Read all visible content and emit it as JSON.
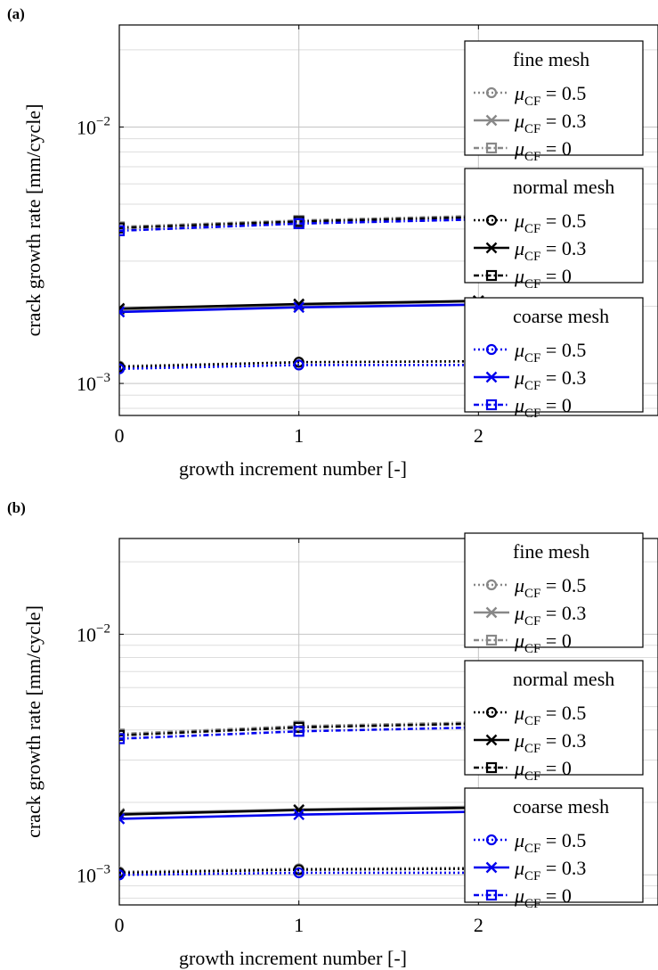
{
  "chart_data": [
    {
      "panel_label": "(a)",
      "type": "line",
      "xlabel": "growth increment number [-]",
      "ylabel": "crack growth rate [mm/cycle]",
      "x": [
        0,
        1,
        2
      ],
      "x_ticks": [
        "0",
        "1",
        "2"
      ],
      "xlim": [
        0,
        3
      ],
      "ylim": [
        0.00075,
        0.025
      ],
      "yscale": "log",
      "y_ticks": [
        {
          "value": 0.001,
          "base": "10",
          "exp": "−3"
        },
        {
          "value": 0.01,
          "base": "10",
          "exp": "−2"
        }
      ],
      "grid": true,
      "legend_placement": "right",
      "legend_groups": [
        {
          "title": "fine mesh",
          "series_names": [
            "μCF = 0.5",
            "μCF = 0.3",
            "μCF = 0"
          ]
        },
        {
          "title": "normal mesh",
          "series_names": [
            "μCF = 0.5",
            "μCF = 0.3",
            "μCF = 0"
          ]
        },
        {
          "title": "coarse mesh",
          "series_names": [
            "μCF = 0.5",
            "μCF = 0.3",
            "μCF = 0"
          ]
        }
      ],
      "legend_value_prefix": "μ",
      "legend_value_sub": "CF",
      "legend_values": [
        "= 0.5",
        "= 0.3",
        "= 0"
      ],
      "series": [
        {
          "group": "fine mesh",
          "mu": "0.5",
          "color": "#888888",
          "marker": "circle",
          "dash": "dotted",
          "values": [
            0.00117,
            0.00121,
            0.00122
          ]
        },
        {
          "group": "fine mesh",
          "mu": "0.3",
          "color": "#888888",
          "marker": "cross",
          "dash": "solid",
          "values": [
            0.00194,
            0.00202,
            0.00209
          ]
        },
        {
          "group": "fine mesh",
          "mu": "0",
          "color": "#888888",
          "marker": "square",
          "dash": "dashdot",
          "values": [
            0.00408,
            0.00432,
            0.0045
          ]
        },
        {
          "group": "normal mesh",
          "mu": "0.5",
          "color": "#000000",
          "marker": "circle",
          "dash": "dotted",
          "values": [
            0.00116,
            0.00121,
            0.00122
          ]
        },
        {
          "group": "normal mesh",
          "mu": "0.3",
          "color": "#000000",
          "marker": "cross",
          "dash": "solid",
          "values": [
            0.00196,
            0.00204,
            0.0021
          ]
        },
        {
          "group": "normal mesh",
          "mu": "0",
          "color": "#000000",
          "marker": "square",
          "dash": "dashdot",
          "values": [
            0.00404,
            0.00428,
            0.00445
          ]
        },
        {
          "group": "coarse mesh",
          "mu": "0.5",
          "color": "#0000ee",
          "marker": "circle",
          "dash": "dotted",
          "values": [
            0.00114,
            0.00118,
            0.00118
          ]
        },
        {
          "group": "coarse mesh",
          "mu": "0.3",
          "color": "#0000ee",
          "marker": "cross",
          "dash": "solid",
          "values": [
            0.0019,
            0.00198,
            0.00203
          ]
        },
        {
          "group": "coarse mesh",
          "mu": "0",
          "color": "#0000ee",
          "marker": "square",
          "dash": "dashdot",
          "values": [
            0.00394,
            0.0042,
            0.00436
          ]
        }
      ]
    },
    {
      "panel_label": "(b)",
      "type": "line",
      "xlabel": "growth increment number [-]",
      "ylabel": "crack growth rate [mm/cycle]",
      "x": [
        0,
        1,
        2
      ],
      "x_ticks": [
        "0",
        "1",
        "2"
      ],
      "xlim": [
        0,
        3
      ],
      "ylim": [
        0.00075,
        0.025
      ],
      "yscale": "log",
      "y_ticks": [
        {
          "value": 0.001,
          "base": "10",
          "exp": "−3"
        },
        {
          "value": 0.01,
          "base": "10",
          "exp": "−2"
        }
      ],
      "grid": true,
      "legend_placement": "right",
      "legend_groups": [
        {
          "title": "fine mesh",
          "series_names": [
            "μCF = 0.5",
            "μCF = 0.3",
            "μCF = 0"
          ]
        },
        {
          "title": "normal mesh",
          "series_names": [
            "μCF = 0.5",
            "μCF = 0.3",
            "μCF = 0"
          ]
        },
        {
          "title": "coarse mesh",
          "series_names": [
            "μCF = 0.5",
            "μCF = 0.3",
            "μCF = 0"
          ]
        }
      ],
      "legend_value_prefix": "μ",
      "legend_value_sub": "CF",
      "legend_values": [
        "= 0.5",
        "= 0.3",
        "= 0"
      ],
      "series": [
        {
          "group": "fine mesh",
          "mu": "0.5",
          "color": "#888888",
          "marker": "circle",
          "dash": "dotted",
          "values": [
            0.00103,
            0.00106,
            0.00107
          ]
        },
        {
          "group": "fine mesh",
          "mu": "0.3",
          "color": "#888888",
          "marker": "cross",
          "dash": "solid",
          "values": [
            0.0018,
            0.00187,
            0.00192
          ]
        },
        {
          "group": "fine mesh",
          "mu": "0",
          "color": "#888888",
          "marker": "square",
          "dash": "dashdot",
          "values": [
            0.00385,
            0.00415,
            0.0043
          ]
        },
        {
          "group": "normal mesh",
          "mu": "0.5",
          "color": "#000000",
          "marker": "circle",
          "dash": "dotted",
          "values": [
            0.00102,
            0.00105,
            0.00106
          ]
        },
        {
          "group": "normal mesh",
          "mu": "0.3",
          "color": "#000000",
          "marker": "cross",
          "dash": "solid",
          "values": [
            0.00178,
            0.00186,
            0.0019
          ]
        },
        {
          "group": "normal mesh",
          "mu": "0",
          "color": "#000000",
          "marker": "square",
          "dash": "dashdot",
          "values": [
            0.0038,
            0.0041,
            0.00425
          ]
        },
        {
          "group": "coarse mesh",
          "mu": "0.5",
          "color": "#0000ee",
          "marker": "circle",
          "dash": "dotted",
          "values": [
            0.001,
            0.00102,
            0.00102
          ]
        },
        {
          "group": "coarse mesh",
          "mu": "0.3",
          "color": "#0000ee",
          "marker": "cross",
          "dash": "solid",
          "values": [
            0.00171,
            0.00178,
            0.00183
          ]
        },
        {
          "group": "coarse mesh",
          "mu": "0",
          "color": "#0000ee",
          "marker": "square",
          "dash": "dashdot",
          "values": [
            0.00368,
            0.00395,
            0.0041
          ]
        }
      ]
    }
  ]
}
